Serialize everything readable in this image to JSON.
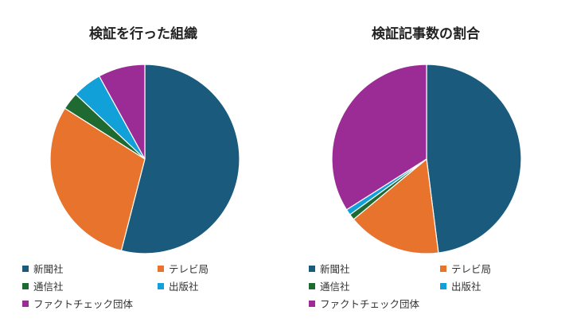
{
  "chart_data": [
    {
      "type": "pie",
      "title": "検証を行った組織",
      "labels": [
        "新聞社",
        "テレビ局",
        "通信社",
        "出版社",
        "ファクトチェック団体"
      ],
      "values": [
        54,
        30,
        3,
        5,
        8
      ],
      "colors": [
        "#1a5a7d",
        "#e8732d",
        "#1f6a31",
        "#12a0d8",
        "#9b2b95"
      ],
      "start_angle_deg": 0,
      "direction": "clockwise"
    },
    {
      "type": "pie",
      "title": "検証記事数の割合",
      "labels": [
        "新聞社",
        "テレビ局",
        "通信社",
        "出版社",
        "ファクトチェック団体"
      ],
      "values": [
        48,
        16,
        1,
        1,
        34
      ],
      "colors": [
        "#1a5a7d",
        "#e8732d",
        "#1f6a31",
        "#12a0d8",
        "#9b2b95"
      ],
      "start_angle_deg": 0,
      "direction": "clockwise"
    }
  ]
}
